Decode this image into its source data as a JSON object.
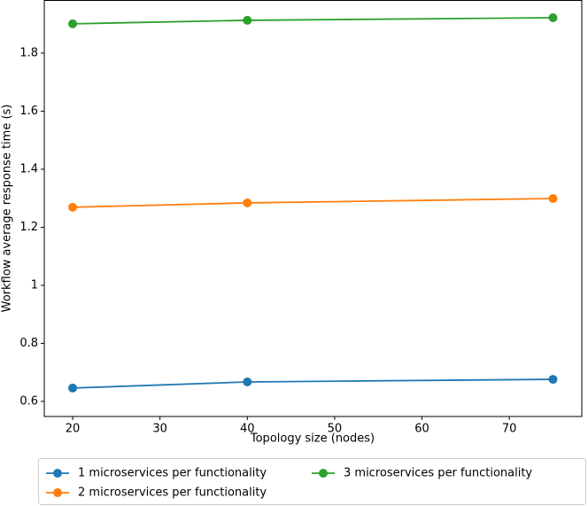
{
  "chart_data": {
    "type": "line",
    "x_label": "Topology size (nodes)",
    "y_label": "Workflow average response time (s)",
    "x": [
      20,
      40,
      75
    ],
    "series": [
      {
        "name": "1 microservices per functionality",
        "color": "#1f77b4",
        "values": [
          0.646,
          0.667,
          0.676
        ]
      },
      {
        "name": "2 microservices per functionality",
        "color": "#ff7f0e",
        "values": [
          1.269,
          1.284,
          1.299
        ]
      },
      {
        "name": "3 microservices per functionality",
        "color": "#2ca02c",
        "values": [
          1.901,
          1.913,
          1.922
        ]
      }
    ],
    "xlim": [
      16.75,
      78.3
    ],
    "xticks": [
      20,
      30,
      40,
      50,
      60,
      70
    ],
    "ylim": [
      0.548,
      1.983
    ],
    "yticks": [
      0.6,
      0.8,
      1.0,
      1.2,
      1.4,
      1.6,
      1.8
    ],
    "legend": "lower center",
    "grid": false
  }
}
